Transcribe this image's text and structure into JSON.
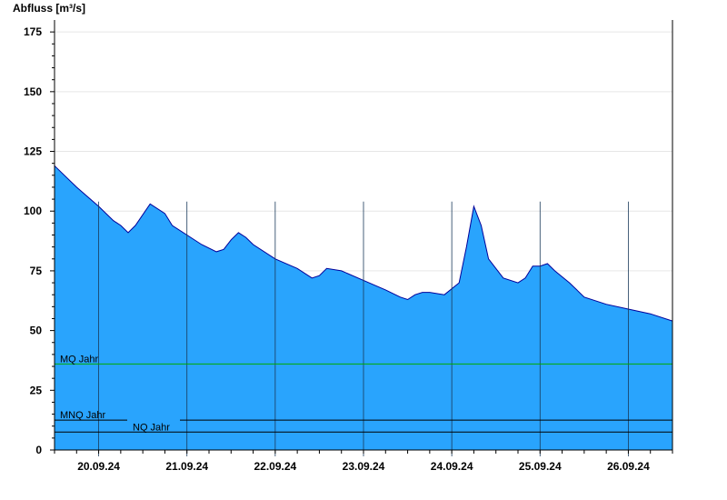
{
  "chart_data": {
    "type": "area",
    "ylabel": "Abfluss [m³/s]",
    "ylim": [
      0,
      180
    ],
    "yticks": [
      0,
      25,
      50,
      75,
      100,
      125,
      150,
      175
    ],
    "xlim": [
      "2024-09-19T12:00",
      "2024-09-26T12:00"
    ],
    "xtick_labels": [
      "20.09.24",
      "21.09.24",
      "22.09.24",
      "23.09.24",
      "24.09.24",
      "25.09.24",
      "26.09.24"
    ],
    "x": [
      "2024-09-19T12:00",
      "2024-09-19T14:00",
      "2024-09-19T18:00",
      "2024-09-20T00:00",
      "2024-09-20T04:00",
      "2024-09-20T06:00",
      "2024-09-20T08:00",
      "2024-09-20T10:00",
      "2024-09-20T14:00",
      "2024-09-20T18:00",
      "2024-09-20T20:00",
      "2024-09-21T00:00",
      "2024-09-21T04:00",
      "2024-09-21T08:00",
      "2024-09-21T10:00",
      "2024-09-21T12:00",
      "2024-09-21T14:00",
      "2024-09-21T16:00",
      "2024-09-21T18:00",
      "2024-09-22T00:00",
      "2024-09-22T06:00",
      "2024-09-22T10:00",
      "2024-09-22T12:00",
      "2024-09-22T14:00",
      "2024-09-22T18:00",
      "2024-09-23T00:00",
      "2024-09-23T06:00",
      "2024-09-23T10:00",
      "2024-09-23T12:00",
      "2024-09-23T14:00",
      "2024-09-23T16:00",
      "2024-09-23T18:00",
      "2024-09-23T22:00",
      "2024-09-24T02:00",
      "2024-09-24T04:00",
      "2024-09-24T06:00",
      "2024-09-24T08:00",
      "2024-09-24T10:00",
      "2024-09-24T14:00",
      "2024-09-24T18:00",
      "2024-09-24T20:00",
      "2024-09-24T22:00",
      "2024-09-25T00:00",
      "2024-09-25T02:00",
      "2024-09-25T04:00",
      "2024-09-25T08:00",
      "2024-09-25T12:00",
      "2024-09-25T18:00",
      "2024-09-26T00:00",
      "2024-09-26T06:00",
      "2024-09-26T12:00"
    ],
    "series": [
      {
        "values": [
          119,
          116,
          110,
          102,
          96,
          94,
          91,
          94,
          103,
          99,
          94,
          90,
          86,
          83,
          84,
          88,
          91,
          89,
          86,
          80,
          76,
          72,
          73,
          76,
          75,
          71,
          67,
          64,
          63,
          65,
          66,
          66,
          65,
          70,
          85,
          102,
          94,
          80,
          72,
          70,
          72,
          77,
          77,
          78,
          75,
          70,
          64,
          61,
          59,
          57,
          54
        ]
      }
    ],
    "reference_lines": [
      {
        "name": "MQ Jahr",
        "value": 36,
        "color": "#00aa00"
      },
      {
        "name": "MNQ Jahr",
        "value": 12.5,
        "color": "#000000"
      },
      {
        "name": "NQ Jahr",
        "value": 7.5,
        "color": "#000000"
      }
    ],
    "fill_color": "#29a4fd",
    "line_color": "#00009a",
    "grid": true
  }
}
